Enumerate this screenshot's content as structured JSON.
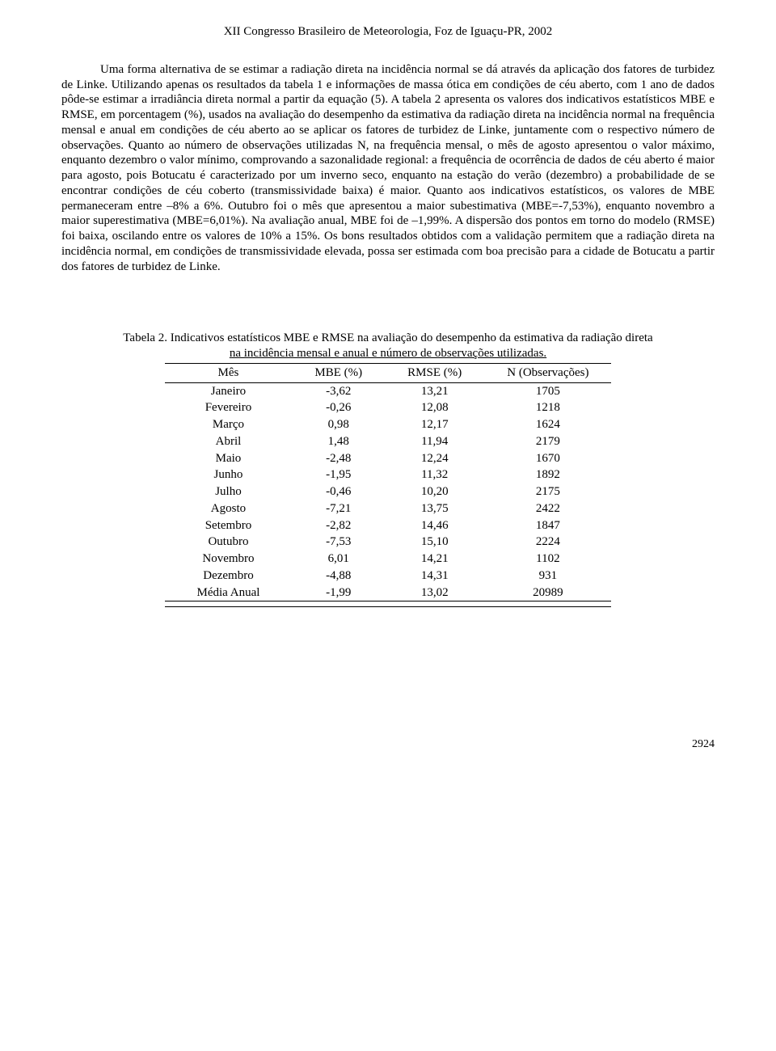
{
  "header": "XII Congresso Brasileiro de Meteorologia, Foz de Iguaçu-PR, 2002",
  "paragraph": "Uma forma alternativa de se estimar a radiação direta na incidência normal se dá através da aplicação dos fatores de turbidez de Linke. Utilizando apenas os resultados da tabela 1 e informações de massa ótica em condições de céu aberto, com 1 ano de dados pôde-se estimar a irradiância direta normal a partir da equação (5). A tabela 2 apresenta os valores dos indicativos estatísticos MBE e RMSE, em porcentagem (%), usados na avaliação do desempenho da estimativa da radiação direta na incidência normal na frequência mensal e anual em condições de céu aberto ao se aplicar os fatores de turbidez de Linke, juntamente com o respectivo número de observações. Quanto ao número de observações utilizadas N, na frequência mensal, o mês de agosto apresentou o valor máximo, enquanto dezembro o valor mínimo, comprovando a sazonalidade regional: a frequência de ocorrência de dados de céu aberto é maior para agosto, pois Botucatu é caracterizado por um inverno seco, enquanto na estação do verão (dezembro) a probabilidade de se encontrar condições de céu coberto (transmissividade baixa) é maior. Quanto aos indicativos estatísticos, os valores de MBE permaneceram entre –8% a 6%. Outubro foi o mês que apresentou a maior subestimativa (MBE=-7,53%), enquanto novembro a maior superestimativa (MBE=6,01%). Na avaliação anual, MBE foi de –1,99%. A dispersão dos pontos em torno do modelo (RMSE) foi baixa, oscilando entre os valores de 10% a 15%. Os bons resultados obtidos com a validação permitem que a radiação direta na incidência normal, em condições de transmissividade elevada, possa ser estimada com boa precisão para a cidade de Botucatu a partir dos fatores de turbidez de Linke.",
  "table": {
    "caption_line1": "Tabela 2. Indicativos estatísticos MBE e RMSE na avaliação do desempenho da estimativa da radiação direta",
    "caption_line2": "na incidência mensal e anual e número de observações utilizadas.",
    "columns": [
      "Mês",
      "MBE (%)",
      "RMSE (%)",
      "N (Observações)"
    ],
    "rows": [
      [
        "Janeiro",
        "-3,62",
        "13,21",
        "1705"
      ],
      [
        "Fevereiro",
        "-0,26",
        "12,08",
        "1218"
      ],
      [
        "Março",
        "0,98",
        "12,17",
        "1624"
      ],
      [
        "Abril",
        "1,48",
        "11,94",
        "2179"
      ],
      [
        "Maio",
        "-2,48",
        "12,24",
        "1670"
      ],
      [
        "Junho",
        "-1,95",
        "11,32",
        "1892"
      ],
      [
        "Julho",
        "-0,46",
        "10,20",
        "2175"
      ],
      [
        "Agosto",
        "-7,21",
        "13,75",
        "2422"
      ],
      [
        "Setembro",
        "-2,82",
        "14,46",
        "1847"
      ],
      [
        "Outubro",
        "-7,53",
        "15,10",
        "2224"
      ],
      [
        "Novembro",
        "6,01",
        "14,21",
        "1102"
      ],
      [
        "Dezembro",
        "-4,88",
        "14,31",
        "931"
      ],
      [
        "Média Anual",
        "-1,99",
        "13,02",
        "20989"
      ]
    ]
  },
  "page_number": "2924"
}
